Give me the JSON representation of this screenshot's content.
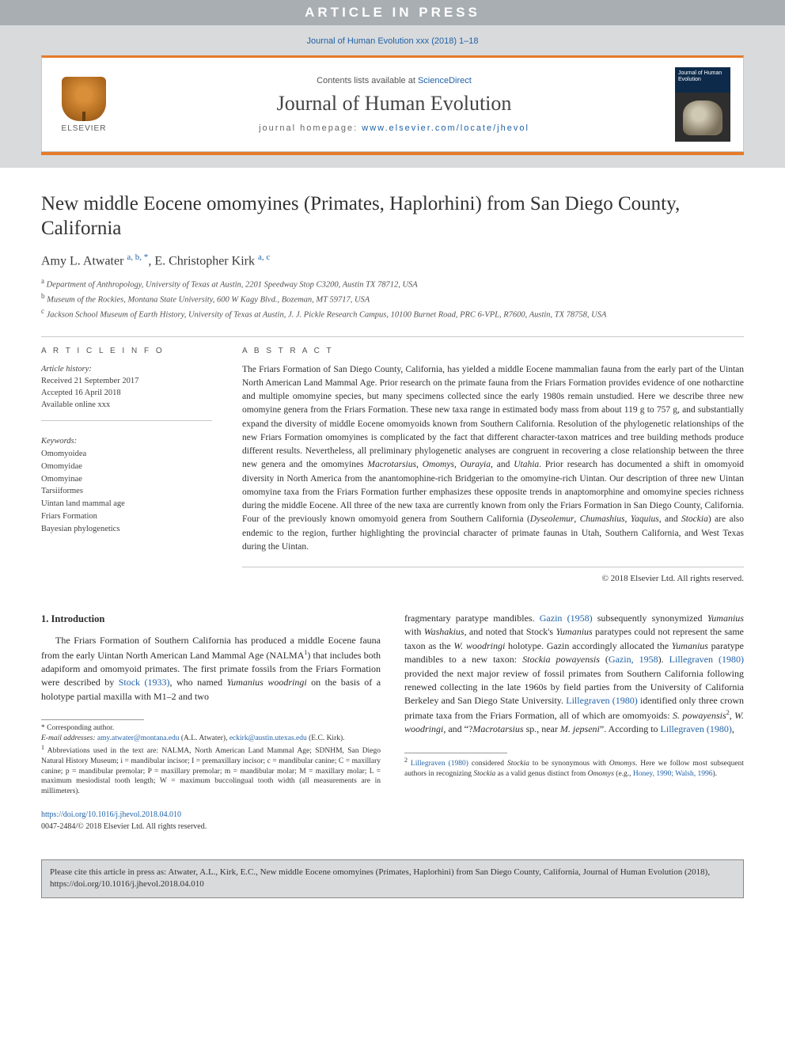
{
  "banner": {
    "text": "ARTICLE IN PRESS"
  },
  "header": {
    "cite_line": "Journal of Human Evolution xxx (2018) 1–18",
    "lists_prefix": "Contents lists available at ",
    "lists_link": "ScienceDirect",
    "journal_name": "Journal of Human Evolution",
    "homepage_prefix": "journal homepage: ",
    "homepage_url": "www.elsevier.com/locate/jhevol",
    "elsevier_label": "ELSEVIER",
    "cover_text": "Journal of Human Evolution"
  },
  "colors": {
    "accent": "#e47b2a",
    "link": "#2262a6",
    "banner_bg": "#a9aeb3",
    "gray_bg": "#d8dadc",
    "border": "#c6c8ca"
  },
  "article": {
    "title": "New middle Eocene omomyines (Primates, Haplorhini) from San Diego County, California",
    "authors_html": "Amy L. Atwater <span class='sup'>a, b, *</span>, E. Christopher Kirk <span class='sup'>a, c</span>",
    "affiliations": [
      {
        "sup": "a",
        "text": "Department of Anthropology, University of Texas at Austin, 2201 Speedway Stop C3200, Austin TX 78712, USA"
      },
      {
        "sup": "b",
        "text": "Museum of the Rockies, Montana State University, 600 W Kagy Blvd., Bozeman, MT 59717, USA"
      },
      {
        "sup": "c",
        "text": "Jackson School Museum of Earth History, University of Texas at Austin, J. J. Pickle Research Campus, 10100 Burnet Road, PRC 6-VPL, R7600, Austin, TX 78758, USA"
      }
    ]
  },
  "info": {
    "heading": "A R T I C L E   I N F O",
    "history_label": "Article history:",
    "history": [
      "Received 21 September 2017",
      "Accepted 16 April 2018",
      "Available online xxx"
    ],
    "keywords_label": "Keywords:",
    "keywords": [
      "Omomyoidea",
      "Omomyidae",
      "Omomyinae",
      "Tarsiiformes",
      "Uintan land mammal age",
      "Friars Formation",
      "Bayesian phylogenetics"
    ]
  },
  "abstract": {
    "heading": "A B S T R A C T",
    "text": "The Friars Formation of San Diego County, California, has yielded a middle Eocene mammalian fauna from the early part of the Uintan North American Land Mammal Age. Prior research on the primate fauna from the Friars Formation provides evidence of one notharctine and multiple omomyine species, but many specimens collected since the early 1980s remain unstudied. Here we describe three new omomyine genera from the Friars Formation. These new taxa range in estimated body mass from about 119 g to 757 g, and substantially expand the diversity of middle Eocene omomyoids known from Southern California. Resolution of the phylogenetic relationships of the new Friars Formation omomyines is complicated by the fact that different character-taxon matrices and tree building methods produce different results. Nevertheless, all preliminary phylogenetic analyses are congruent in recovering a close relationship between the three new genera and the omomyines <em>Macrotarsius</em>, <em>Omomys</em>, <em>Ourayia</em>, and <em>Utahia</em>. Prior research has documented a shift in omomyoid diversity in North America from the anantomophine-rich Bridgerian to the omomyine-rich Uintan. Our description of three new Uintan omomyine taxa from the Friars Formation further emphasizes these opposite trends in anaptomorphine and omomyine species richness during the middle Eocene. All three of the new taxa are currently known from only the Friars Formation in San Diego County, California. Four of the previously known omomyoid genera from Southern California (<em>Dyseolemur</em>, <em>Chumashius</em>, <em>Yaquius</em>, and <em>Stockia</em>) are also endemic to the region, further highlighting the provincial character of primate faunas in Utah, Southern California, and West Texas during the Uintan.",
    "copyright": "© 2018 Elsevier Ltd. All rights reserved."
  },
  "body": {
    "section_heading": "1. Introduction",
    "left_para": "The Friars Formation of Southern California has produced a middle Eocene fauna from the early Uintan North American Land Mammal Age (NALMA<span class='fsup'>1</span>) that includes both adapiform and omomyoid primates. The first primate fossils from the Friars Formation were described by <a class='a-link' href='#'>Stock (1933)</a>, who named <em>Yumanius woodringi</em> on the basis of a holotype partial maxilla with M1–2 and two",
    "right_para": "fragmentary paratype mandibles. <a class='a-link' href='#'>Gazin (1958)</a> subsequently synonymized <em>Yumanius</em> with <em>Washakius</em>, and noted that Stock's <em>Yumanius</em> paratypes could not represent the same taxon as the <em>W. woodringi</em> holotype. Gazin accordingly allocated the <em>Yumanius</em> paratype mandibles to a new taxon: <em>Stockia powayensis</em> (<a class='a-link' href='#'>Gazin, 1958</a>). <a class='a-link' href='#'>Lillegraven (1980)</a> provided the next major review of fossil primates from Southern California following renewed collecting in the late 1960s by field parties from the University of California Berkeley and San Diego State University. <a class='a-link' href='#'>Lillegraven (1980)</a> identified only three crown primate taxa from the Friars Formation, all of which are omomyoids: <em>S. powayensis</em><span class='fsup'>2</span>, <em>W. woodringi</em>, and “?<em>Macrotarsius</em> sp., near <em>M. jepseni</em>”. According to <a class='a-link' href='#'>Lillegraven (1980)</a>,"
  },
  "footnotes": {
    "corr": "* Corresponding author.",
    "emails_label": "E-mail addresses:",
    "email1": "amy.atwater@montana.edu",
    "email1_name": "(A.L. Atwater),",
    "email2": "eckirk@austin.utexas.edu",
    "email2_name": "(E.C. Kirk).",
    "fn1": "Abbreviations used in the text are: NALMA, North American Land Mammal Age; SDNHM, San Diego Natural History Museum; i = mandibular incisor; I = premaxillary incisor; c = mandibular canine; C = maxillary canine; p = mandibular premolar; P = maxillary premolar; m = mandibular molar; M = maxillary molar; L = maximum mesiodistal tooth length; W = maximum buccolingual tooth width (all measurements are in millimeters).",
    "fn2_pre": "Lillegraven (1980)",
    "fn2_mid": " considered <em>Stockia</em> to be synonymous with <em>Omomys</em>. Here we follow most subsequent authors in recognizing <em>Stockia</em> as a valid genus distinct from <em>Omomys</em> (e.g., ",
    "fn2_links": "Honey, 1990; Walsh, 1996",
    "fn2_post": ")."
  },
  "doi": {
    "url": "https://doi.org/10.1016/j.jhevol.2018.04.010",
    "issn_line": "0047-2484/© 2018 Elsevier Ltd. All rights reserved."
  },
  "cite_box": "Please cite this article in press as: Atwater, A.L., Kirk, E.C., New middle Eocene omomyines (Primates, Haplorhini) from San Diego County, California, Journal of Human Evolution (2018), https://doi.org/10.1016/j.jhevol.2018.04.010"
}
